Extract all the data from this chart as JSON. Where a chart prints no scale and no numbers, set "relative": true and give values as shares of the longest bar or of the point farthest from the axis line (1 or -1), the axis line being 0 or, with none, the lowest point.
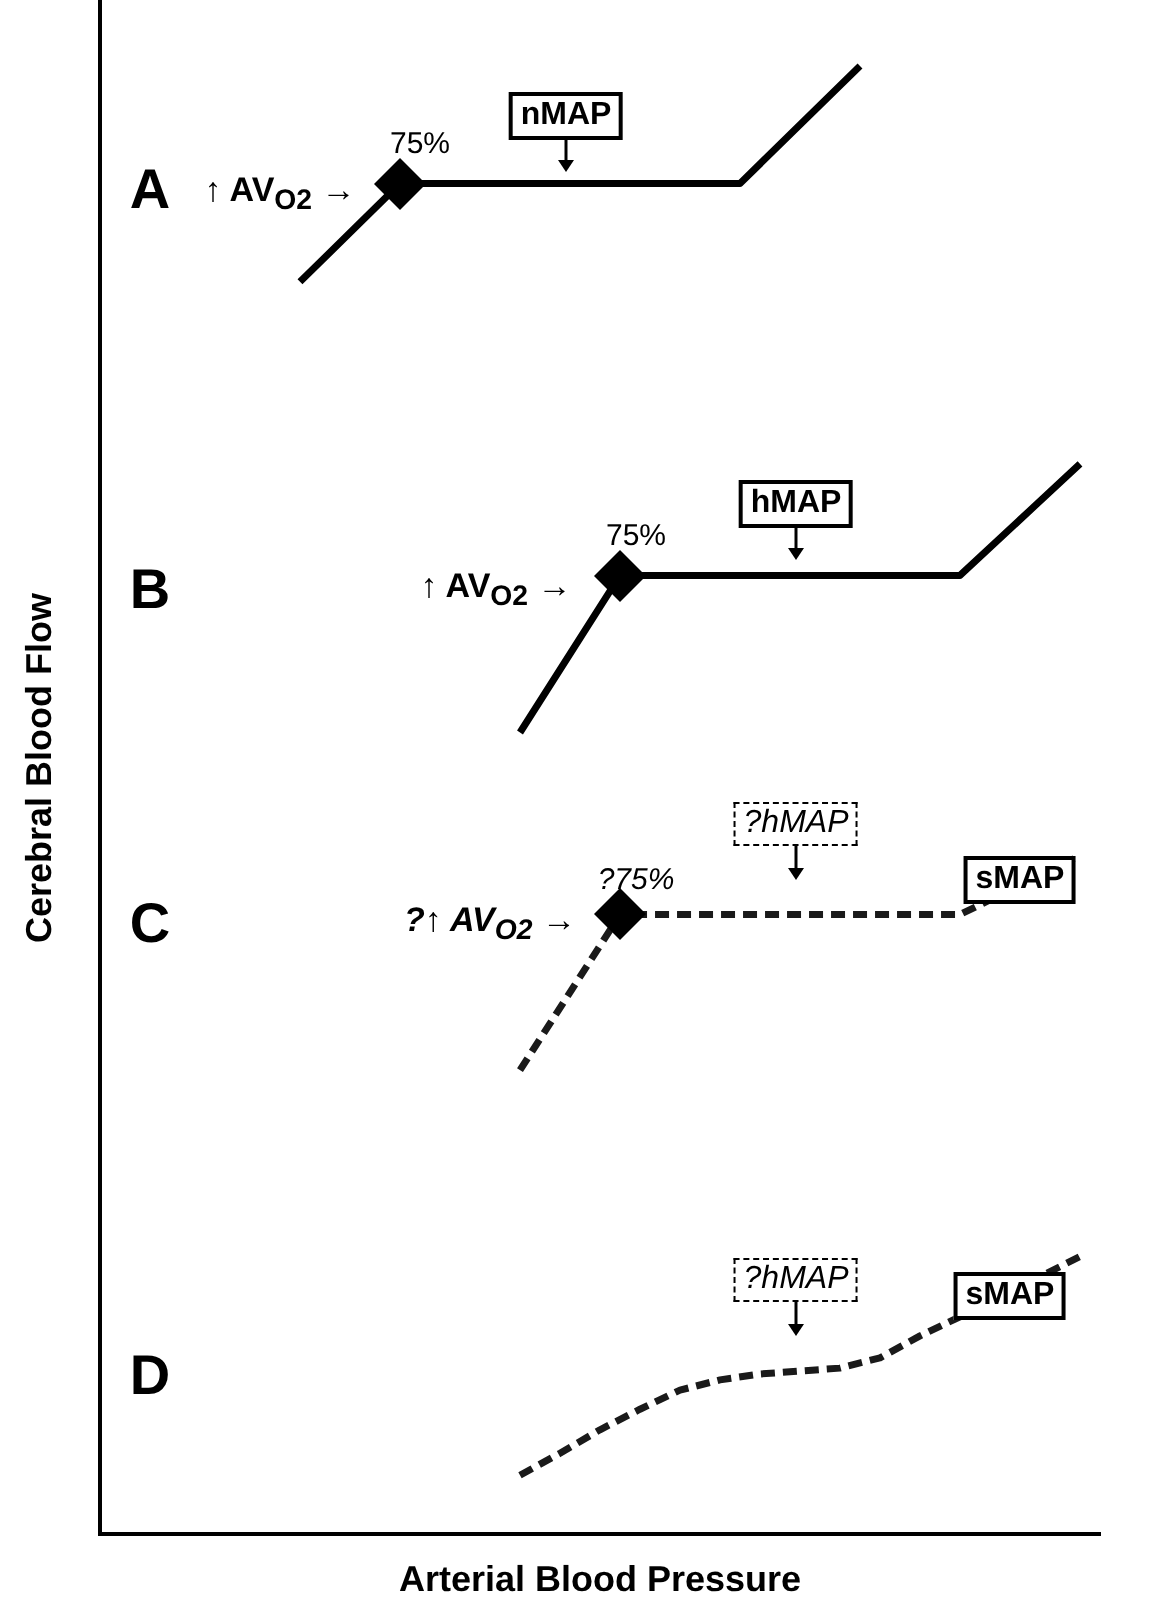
{
  "chart_data": {
    "type": "line",
    "relative": true,
    "xlabel": "Arterial Blood Pressure",
    "ylabel": "Cerebral Blood Flow",
    "categories": [
      null,
      null,
      null,
      null,
      null,
      null,
      null,
      null,
      null,
      null,
      null,
      null,
      null,
      null,
      null,
      null,
      null,
      null,
      null,
      null,
      null,
      null,
      null,
      null,
      null,
      null,
      null,
      null,
      null,
      null,
      null,
      null,
      null,
      null,
      null,
      null,
      null,
      null,
      null,
      null,
      null,
      null,
      null,
      null,
      null,
      null,
      null,
      null,
      null,
      null,
      null
    ],
    "series": [
      {
        "color": "#000000",
        "line_style": "solid",
        "values": [
          null,
          null,
          null,
          null,
          null,
          null,
          null,
          null,
          null,
          null,
          0.853,
          null,
          null,
          null,
          null,
          0.92,
          null,
          null,
          null,
          null,
          null,
          null,
          null,
          null,
          null,
          null,
          null,
          null,
          null,
          null,
          null,
          null,
          0.92,
          null,
          null,
          null,
          null,
          null,
          1,
          null,
          null,
          null,
          null,
          null,
          null,
          null,
          null,
          null,
          null,
          null,
          null
        ]
      },
      {
        "color": "#000000",
        "line_style": "solid",
        "values": [
          null,
          null,
          null,
          null,
          null,
          null,
          null,
          null,
          null,
          null,
          null,
          null,
          null,
          null,
          null,
          null,
          null,
          null,
          null,
          null,
          null,
          0.546,
          null,
          null,
          null,
          null,
          0.653,
          null,
          null,
          null,
          null,
          null,
          null,
          null,
          null,
          null,
          null,
          null,
          null,
          null,
          null,
          null,
          null,
          0.653,
          null,
          null,
          null,
          null,
          null,
          0.729,
          null
        ]
      },
      {
        "color": "#1a1a1a",
        "line_style": "dashed",
        "values": [
          null,
          null,
          null,
          null,
          null,
          null,
          null,
          null,
          null,
          null,
          null,
          null,
          null,
          null,
          null,
          null,
          null,
          null,
          null,
          null,
          null,
          0.316,
          null,
          null,
          null,
          null,
          0.422,
          null,
          null,
          null,
          null,
          null,
          null,
          null,
          null,
          null,
          null,
          null,
          null,
          null,
          null,
          null,
          null,
          0.422,
          null,
          null,
          null,
          null,
          null,
          0.462,
          null
        ]
      },
      {
        "color": "#1a1a1a",
        "line_style": "dashed",
        "values": [
          null,
          null,
          null,
          null,
          null,
          null,
          null,
          null,
          null,
          null,
          null,
          null,
          null,
          null,
          null,
          null,
          null,
          null,
          null,
          null,
          null,
          0.04,
          null,
          0.055,
          null,
          0.071,
          null,
          0.085,
          null,
          0.098,
          null,
          0.105,
          null,
          0.109,
          null,
          0.111,
          null,
          0.113,
          null,
          0.12,
          null,
          0.135,
          null,
          0.148,
          null,
          null,
          null,
          null,
          null,
          0.189,
          null
        ]
      }
    ],
    "annotations": [
      "75%",
      "nMAP",
      "↑ AV$_{O2}$ →",
      "75%",
      "hMAP",
      "↑ AV$_{O2}$ →",
      "?75%",
      "?hMAP",
      "sMAP",
      "?↑ AV$_{O2}$ →",
      "?hMAP",
      "sMAP",
      "A",
      "B",
      "C",
      "D"
    ]
  }
}
